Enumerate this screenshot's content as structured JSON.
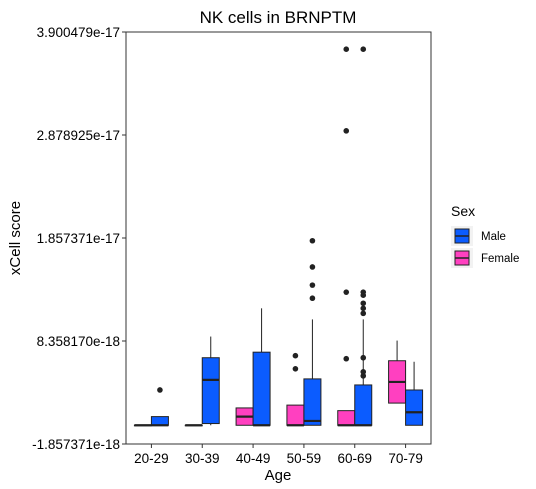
{
  "chart_data": {
    "type": "boxplot",
    "title": "NK cells in BRNPTM",
    "xlabel": "Age",
    "ylabel": "xCell score",
    "categories": [
      "20-29",
      "30-39",
      "40-49",
      "50-59",
      "60-69",
      "70-79"
    ],
    "y_ticks": [
      "-1.857371e-18",
      "8.358170e-18",
      "1.857371e-17",
      "2.878925e-17",
      "3.900479e-17"
    ],
    "y_tick_values": [
      -1.857371e-18,
      8.35817e-18,
      1.857371e-17,
      2.878925e-17,
      3.900479e-17
    ],
    "ylim": [
      -1.857371e-18,
      3.900479e-17
    ],
    "grid": false,
    "legend": {
      "title": "Sex",
      "position": "right",
      "entries": [
        {
          "key": "male",
          "label": "Male",
          "color": "#0B5CFF"
        },
        {
          "key": "female",
          "label": "Female",
          "color": "#FF40C0"
        }
      ]
    },
    "series": [
      {
        "name": "Male",
        "color": "#0B5CFF",
        "boxes": [
          {
            "category": "20-29",
            "min": 0,
            "q1": 0,
            "median": 0,
            "q3": 8.6e-19,
            "max": 8.6e-19,
            "outliers": [
              3.5e-18
            ]
          },
          {
            "category": "30-39",
            "min": 0,
            "q1": 1.7e-19,
            "median": 4.5e-18,
            "q3": 6.7e-18,
            "max": 8.8e-18,
            "outliers": []
          },
          {
            "category": "40-49",
            "min": 0,
            "q1": 0,
            "median": 0,
            "q3": 7.25e-18,
            "max": 1.16e-17,
            "outliers": []
          },
          {
            "category": "50-59",
            "min": 0,
            "q1": 0,
            "median": 4.3e-19,
            "q3": 4.6e-18,
            "max": 1.05e-17,
            "outliers": [
              1.83e-17,
              1.57e-17,
              1.39e-17,
              1.26e-17
            ]
          },
          {
            "category": "60-69",
            "min": 0,
            "q1": 0,
            "median": 0,
            "q3": 4e-18,
            "max": 1.05e-17,
            "outliers": [
              3.73e-17,
              1.32e-17,
              1.29e-17,
              1.21e-17,
              1.16e-17,
              1.11e-17,
              4.9e-18,
              6.7e-18,
              5.3e-18
            ]
          },
          {
            "category": "70-79",
            "min": 0,
            "q1": 0,
            "median": 1.29e-18,
            "q3": 3.5e-18,
            "max": 6.3e-18,
            "outliers": []
          }
        ]
      },
      {
        "name": "Female",
        "color": "#FF40C0",
        "boxes": [
          {
            "category": "20-29",
            "min": 0,
            "q1": 0,
            "median": 0,
            "q3": 0,
            "max": 0,
            "outliers": []
          },
          {
            "category": "30-39",
            "min": 0,
            "q1": 0,
            "median": 0,
            "q3": 0,
            "max": 0,
            "outliers": []
          },
          {
            "category": "40-49",
            "min": 0,
            "q1": 0,
            "median": 8.6e-19,
            "q3": 1.72e-18,
            "max": 1.72e-18,
            "outliers": []
          },
          {
            "category": "50-59",
            "min": 0,
            "q1": 0,
            "median": 0,
            "q3": 2e-18,
            "max": 2e-18,
            "outliers": [
              6.9e-18,
              5.6e-18
            ]
          },
          {
            "category": "60-69",
            "min": 0,
            "q1": 0,
            "median": 0,
            "q3": 1.45e-18,
            "max": 1.45e-18,
            "outliers": [
              3.73e-17,
              2.92e-17,
              1.32e-17,
              6.6e-18
            ]
          },
          {
            "category": "70-79",
            "min": 2.2e-18,
            "q1": 2.2e-18,
            "median": 4.3e-18,
            "q3": 6.4e-18,
            "max": 8.4e-18,
            "outliers": []
          }
        ]
      }
    ]
  }
}
